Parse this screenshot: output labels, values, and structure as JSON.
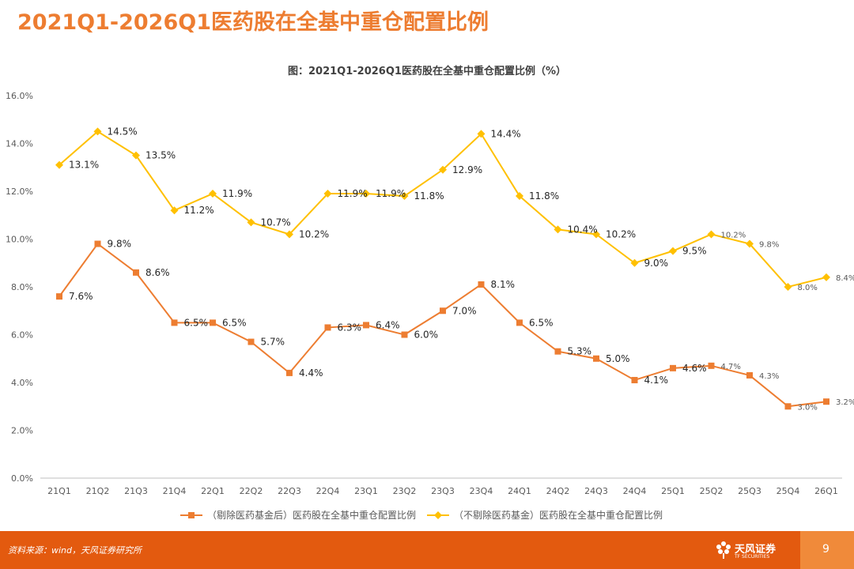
{
  "slide_title": "2021Q1-2026Q1医药股在全基中重仓配置比例",
  "footer": {
    "source": "资料来源：wind，天风证券研究所",
    "brand_name": "天风证券",
    "brand_sub": "TF SECURITIES",
    "page_number": "9"
  },
  "colors": {
    "accent": "#ED7D31",
    "series1": "#ED7D31",
    "series2": "#FFC000",
    "footer": "#E35A0F"
  },
  "chart_data": {
    "type": "line",
    "title": "图：2021Q1-2026Q1医药股在全基中重仓配置比例（%）",
    "categories": [
      "21Q1",
      "21Q2",
      "21Q3",
      "21Q4",
      "22Q1",
      "22Q2",
      "22Q3",
      "22Q4",
      "23Q1",
      "23Q2",
      "23Q3",
      "23Q4",
      "24Q1",
      "24Q2",
      "24Q3",
      "24Q4",
      "25Q1",
      "25Q2",
      "25Q3",
      "25Q4",
      "26Q1"
    ],
    "ylim": [
      0,
      16
    ],
    "yticks": [
      "0.0%",
      "2.0%",
      "4.0%",
      "6.0%",
      "8.0%",
      "10.0%",
      "12.0%",
      "14.0%",
      "16.0%"
    ],
    "grid": false,
    "legend_position": "bottom",
    "series": [
      {
        "name": "（剔除医药基金后）医药股在全基中重仓配置比例",
        "marker": "square",
        "values": [
          7.6,
          9.8,
          8.6,
          6.5,
          6.5,
          5.7,
          4.4,
          6.3,
          6.4,
          6.0,
          7.0,
          8.1,
          6.5,
          5.3,
          5.0,
          4.1,
          4.6,
          4.7,
          4.3,
          3.0,
          3.2
        ],
        "labels": [
          "7.6%",
          "9.8%",
          "8.6%",
          "6.5%",
          "6.5%",
          "5.7%",
          "4.4%",
          "6.3%",
          "6.4%",
          "6.0%",
          "7.0%",
          "8.1%",
          "6.5%",
          "5.3%",
          "5.0%",
          "4.1%",
          "4.6%",
          "4.7%",
          "4.3%",
          "3.0%",
          "3.2%"
        ]
      },
      {
        "name": "（不剔除医药基金）医药股在全基中重仓配置比例",
        "marker": "diamond",
        "values": [
          13.1,
          14.5,
          13.5,
          11.2,
          11.9,
          10.7,
          10.2,
          11.9,
          11.9,
          11.8,
          12.9,
          14.4,
          11.8,
          10.4,
          10.2,
          9.0,
          9.5,
          10.2,
          9.8,
          8.0,
          8.4
        ],
        "labels": [
          "13.1%",
          "14.5%",
          "13.5%",
          "11.2%",
          "11.9%",
          "10.7%",
          "10.2%",
          "11.9%",
          "11.9%",
          "11.8%",
          "12.9%",
          "14.4%",
          "11.8%",
          "10.4%",
          "10.2%",
          "9.0%",
          "9.5%",
          "10.2%",
          "9.8%",
          "8.0%",
          "8.4%"
        ]
      }
    ]
  }
}
